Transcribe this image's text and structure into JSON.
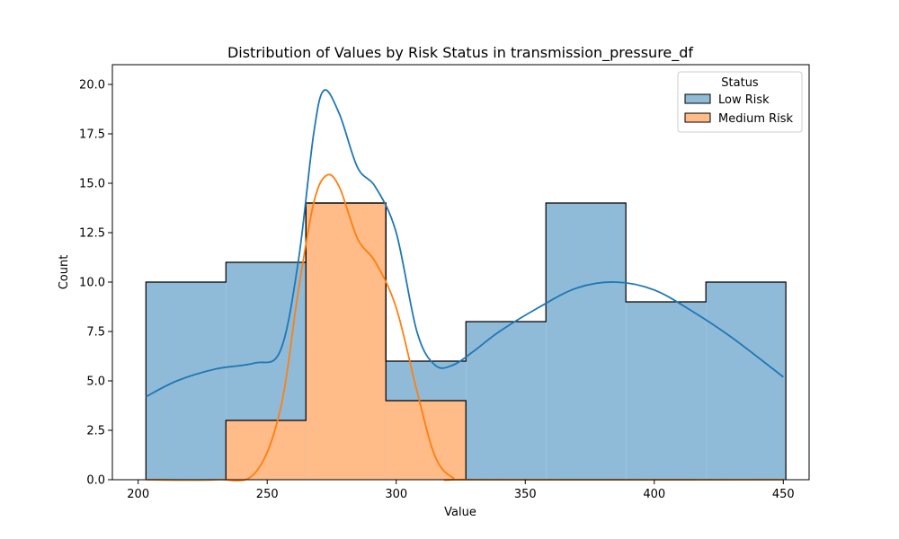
{
  "chart_data": {
    "type": "histogram",
    "title": "Distribution of Values by Risk Status in transmission_pressure_df",
    "xlabel": "Value",
    "ylabel": "Count",
    "xlim": [
      190,
      460
    ],
    "ylim": [
      0,
      21
    ],
    "xticks": [
      200,
      250,
      300,
      350,
      400,
      450
    ],
    "yticks": [
      0.0,
      2.5,
      5.0,
      7.5,
      10.0,
      12.5,
      15.0,
      17.5,
      20.0
    ],
    "ytick_labels": [
      "0.0",
      "2.5",
      "5.0",
      "7.5",
      "10.0",
      "12.5",
      "15.0",
      "17.5",
      "20.0"
    ],
    "grid": false,
    "legend": {
      "title": "Status",
      "position": "top-right"
    },
    "bin_edges": [
      203,
      234,
      265,
      296,
      327,
      358,
      389,
      420,
      451
    ],
    "series": [
      {
        "name": "Low Risk",
        "color": "#8fbbd9",
        "line_color": "#1f77b4",
        "counts": [
          10,
          11,
          14,
          6,
          8,
          14,
          9,
          10
        ],
        "kde": [
          [
            203,
            4.2
          ],
          [
            215,
            5.0
          ],
          [
            230,
            5.6
          ],
          [
            245,
            5.9
          ],
          [
            255,
            6.5
          ],
          [
            262,
            11.0
          ],
          [
            268,
            17.5
          ],
          [
            272,
            19.7
          ],
          [
            278,
            18.5
          ],
          [
            285,
            15.8
          ],
          [
            292,
            14.8
          ],
          [
            300,
            12.5
          ],
          [
            308,
            7.5
          ],
          [
            315,
            5.8
          ],
          [
            322,
            5.8
          ],
          [
            330,
            6.5
          ],
          [
            340,
            7.5
          ],
          [
            355,
            8.7
          ],
          [
            370,
            9.7
          ],
          [
            385,
            10.0
          ],
          [
            400,
            9.6
          ],
          [
            415,
            8.5
          ],
          [
            430,
            7.2
          ],
          [
            450,
            5.2
          ]
        ]
      },
      {
        "name": "Medium Risk",
        "color": "#ffbb88",
        "line_color": "#ff7f0e",
        "counts": [
          0,
          3,
          14,
          4,
          0,
          0,
          0,
          0
        ],
        "kde": [
          [
            203,
            0.0
          ],
          [
            230,
            0.0
          ],
          [
            245,
            0.3
          ],
          [
            255,
            3.5
          ],
          [
            262,
            9.5
          ],
          [
            268,
            14.0
          ],
          [
            273,
            15.4
          ],
          [
            278,
            14.8
          ],
          [
            285,
            12.2
          ],
          [
            292,
            11.0
          ],
          [
            300,
            8.7
          ],
          [
            308,
            4.5
          ],
          [
            315,
            1.2
          ],
          [
            322,
            0.1
          ],
          [
            330,
            0.0
          ],
          [
            450,
            0.0
          ]
        ]
      }
    ]
  }
}
